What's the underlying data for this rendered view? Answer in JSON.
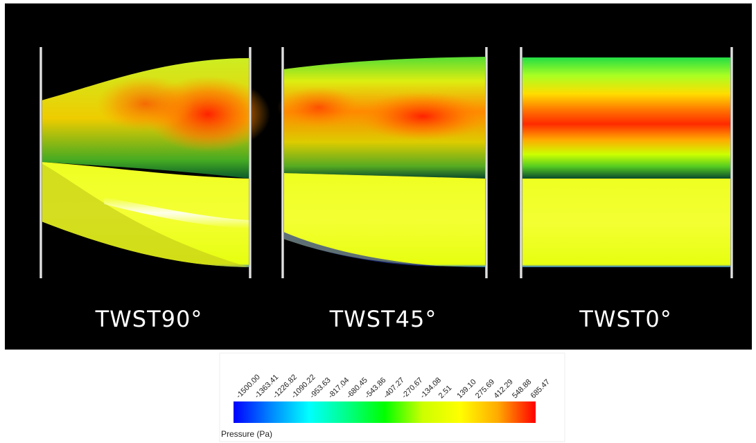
{
  "panels": [
    {
      "label": "TWST90°"
    },
    {
      "label": "TWST45°"
    },
    {
      "label": "TWST0°"
    }
  ],
  "colorbar": {
    "title": "Pressure (Pa)",
    "range": [
      -1500,
      685.47
    ],
    "colors": [
      "#0000ff",
      "#0088ff",
      "#00ffff",
      "#00ff88",
      "#00ff00",
      "#ccff00",
      "#ffff00",
      "#ffaa00",
      "#ff0000"
    ],
    "ticks": [
      {
        "value": -1500,
        "label": "-1500.00"
      },
      {
        "value": -1363.41,
        "label": "-1363.41"
      },
      {
        "value": -1226.82,
        "label": "-1226.82"
      },
      {
        "value": -1090.22,
        "label": "-1090.22"
      },
      {
        "value": -953.63,
        "label": "-953.63"
      },
      {
        "value": -817.04,
        "label": "-817.04"
      },
      {
        "value": -680.45,
        "label": "-680.45"
      },
      {
        "value": -543.86,
        "label": "-543.86"
      },
      {
        "value": -407.27,
        "label": "-407.27"
      },
      {
        "value": -270.67,
        "label": "-270.67"
      },
      {
        "value": -134.08,
        "label": "-134.08"
      },
      {
        "value": 2.51,
        "label": "2.51"
      },
      {
        "value": 139.1,
        "label": "139.10"
      },
      {
        "value": 275.69,
        "label": "275.69"
      },
      {
        "value": 412.29,
        "label": "412.29"
      },
      {
        "value": 548.88,
        "label": "548.88"
      },
      {
        "value": 685.47,
        "label": "685.47"
      }
    ]
  }
}
